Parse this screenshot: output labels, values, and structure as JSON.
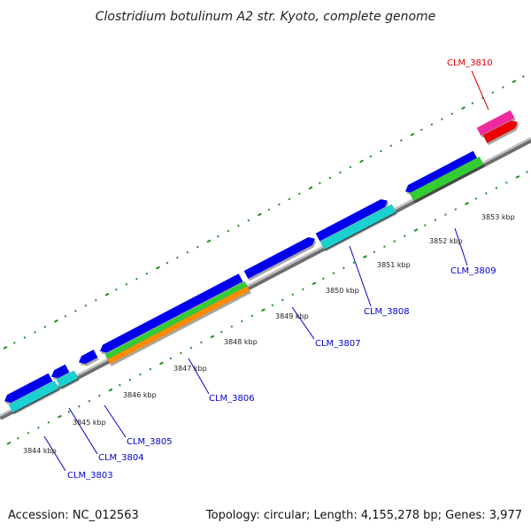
{
  "title": "Clostridium botulinum A2 str. Kyoto, complete genome",
  "accession": "Accession: NC_012563",
  "topology": "Topology: circular; Length: 4,155,278 bp; Genes: 3,977",
  "colors": {
    "backbone": "#8c8c8c",
    "ticks": "#228b22",
    "blue": "#0000ee",
    "cyan": "#1ad0d0",
    "green": "#33cc33",
    "orange": "#ff8c00",
    "magenta": "#ee2aa0",
    "red": "#ee0000",
    "label_blue": "#0000cc",
    "label_red": "#dd0000"
  },
  "kbp_labels": [
    "3844 kbp",
    "3845 kbp",
    "3846 kbp",
    "3847 kbp",
    "3848 kbp",
    "3849 kbp",
    "3850 kbp",
    "3851 kbp",
    "3852 kbp",
    "3853 kbp"
  ],
  "gene_labels": [
    "CLM_3803",
    "CLM_3804",
    "CLM_3805",
    "CLM_3806",
    "CLM_3807",
    "CLM_3808",
    "CLM_3809",
    "CLM_3810"
  ]
}
